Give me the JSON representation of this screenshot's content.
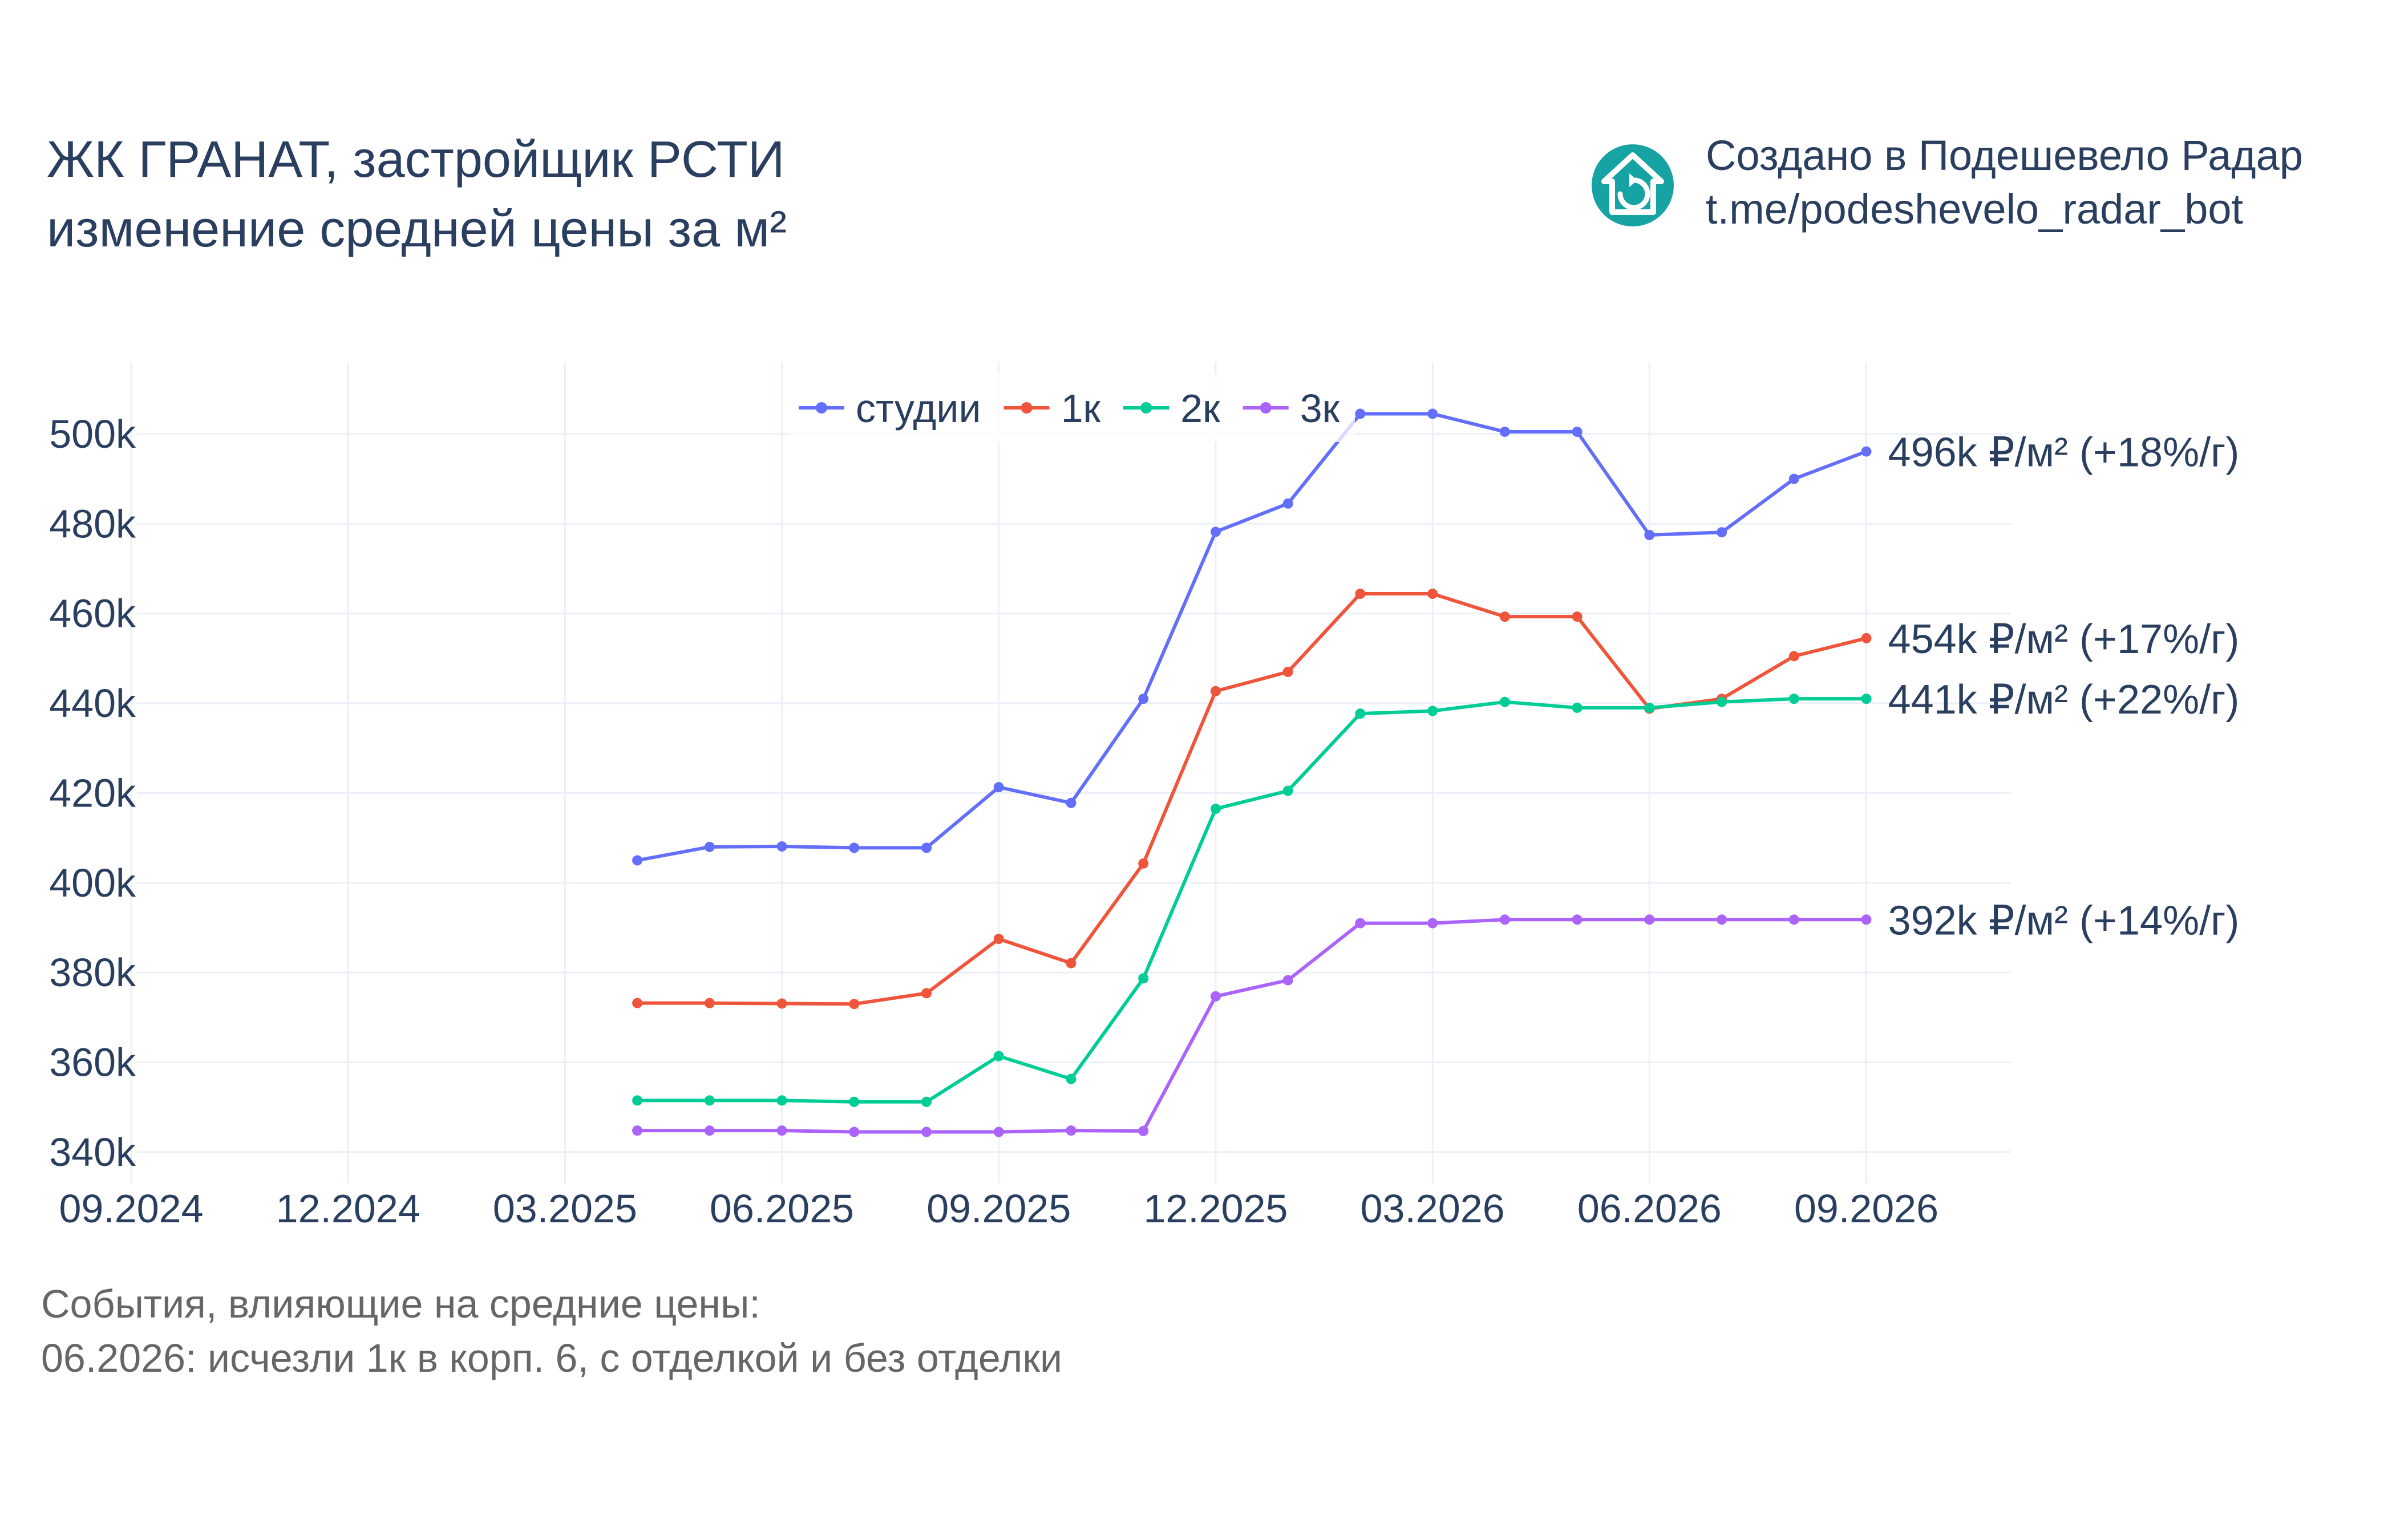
{
  "title_lines": [
    "ЖК ГРАНАТ, застройщик РСТИ",
    "изменение средней цены за м²"
  ],
  "credit": {
    "line1": "Создано в Подешевело Радар",
    "line2": "t.me/podeshevelo_radar_bot",
    "icon": "house-refresh-icon",
    "icon_color": "#17a2a4"
  },
  "notes": {
    "line1": "События, влияющие на средние цены:",
    "line2": "06.2026: исчезли 1к в корп. 6, с отделкой и без отделки"
  },
  "chart_data": {
    "type": "line",
    "x_tick_labels": [
      "09.2024",
      "12.2024",
      "03.2025",
      "06.2025",
      "09.2025",
      "12.2025",
      "03.2026",
      "06.2026",
      "09.2026"
    ],
    "y_tick_labels": [
      "340k",
      "360k",
      "380k",
      "400k",
      "420k",
      "440k",
      "460k",
      "480k",
      "500k"
    ],
    "y_ticks": [
      340000,
      360000,
      380000,
      400000,
      420000,
      440000,
      460000,
      480000,
      500000
    ],
    "ylim": [
      333000,
      516000
    ],
    "xlim": [
      "2024-09",
      "2026-11"
    ],
    "grid": true,
    "legend_position": "top-center",
    "x": [
      "2025-04",
      "2025-05",
      "2025-06",
      "2025-07",
      "2025-08",
      "2025-09",
      "2025-10",
      "2025-11",
      "2025-12",
      "2026-01",
      "2026-02",
      "2026-03",
      "2026-04",
      "2026-05",
      "2026-06",
      "2026-07",
      "2026-08",
      "2026-09"
    ],
    "series": [
      {
        "name": "студии",
        "color": "#636efa",
        "values": [
          405000,
          408000,
          408100,
          407800,
          407800,
          421300,
          417800,
          441000,
          478200,
          484500,
          504500,
          504500,
          500500,
          500500,
          477500,
          478100,
          490000,
          496100
        ],
        "end_label": "496k ₽/м² (+18%/г)"
      },
      {
        "name": "1к",
        "color": "#ef553b",
        "values": [
          373200,
          373200,
          373100,
          373000,
          375400,
          387500,
          382100,
          404300,
          442700,
          447000,
          464400,
          464400,
          459300,
          459300,
          438800,
          441000,
          450500,
          454500
        ],
        "end_label": "454k ₽/м² (+17%/г)"
      },
      {
        "name": "2к",
        "color": "#00cc96",
        "values": [
          351500,
          351500,
          351500,
          351200,
          351200,
          361400,
          356300,
          378700,
          416500,
          420500,
          437700,
          438300,
          440300,
          439000,
          439000,
          440300,
          441000,
          441000
        ],
        "end_label": "441k ₽/м² (+22%/г)"
      },
      {
        "name": "3к",
        "color": "#ab63fa",
        "values": [
          344800,
          344800,
          344800,
          344500,
          344500,
          344500,
          344800,
          344700,
          374700,
          378300,
          391000,
          391000,
          391800,
          391800,
          391800,
          391800,
          391800,
          391800
        ],
        "end_label": "392k ₽/м² (+14%/г)"
      }
    ]
  }
}
